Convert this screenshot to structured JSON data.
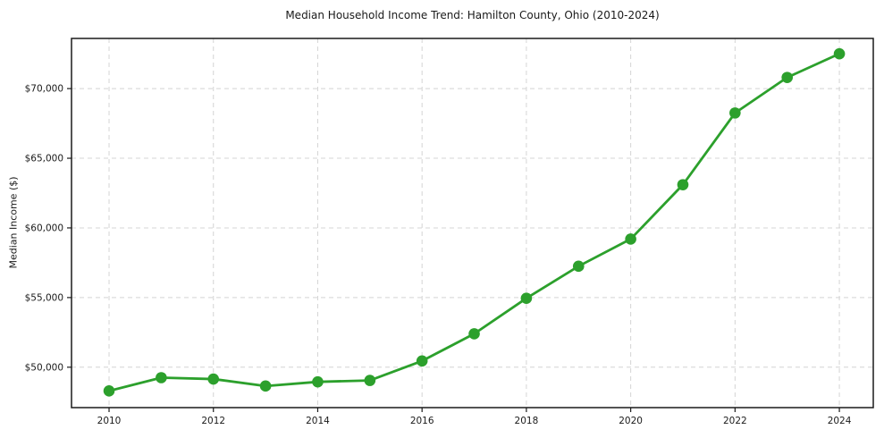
{
  "chart_data": {
    "type": "line",
    "title": "Median Household Income Trend: Hamilton County, Ohio (2010-2024)",
    "xlabel": "",
    "ylabel": "Median Income ($)",
    "x": [
      2010,
      2011,
      2012,
      2013,
      2014,
      2015,
      2016,
      2017,
      2018,
      2019,
      2020,
      2021,
      2022,
      2023,
      2024
    ],
    "series": [
      {
        "name": "Median Household Income",
        "values": [
          48300,
          49250,
          49150,
          48650,
          48950,
          49050,
          50450,
          52400,
          54950,
          57250,
          59200,
          63100,
          68250,
          70800,
          72500
        ],
        "color": "#2ca02c",
        "marker": "circle",
        "marker_radius": 6.3,
        "line_width": 2.8
      }
    ],
    "xticks": [
      2010,
      2012,
      2014,
      2016,
      2018,
      2020,
      2022,
      2024
    ],
    "xtick_labels": [
      "2010",
      "2012",
      "2014",
      "2016",
      "2018",
      "2020",
      "2022",
      "2024"
    ],
    "yticks": [
      50000,
      55000,
      60000,
      65000,
      70000
    ],
    "ytick_labels": [
      "$50,000",
      "$55,000",
      "$60,000",
      "$65,000",
      "$70,000"
    ],
    "xlim": [
      2009.28,
      2024.65
    ],
    "ylim": [
      47100,
      73600
    ],
    "grid": true,
    "grid_style": "dashed",
    "legend": false,
    "colors": {
      "line": "#2ca02c",
      "grid": "#d4d4d4",
      "spine": "#1a1a1a",
      "text": "#1a1a1a",
      "background": "#ffffff"
    }
  }
}
